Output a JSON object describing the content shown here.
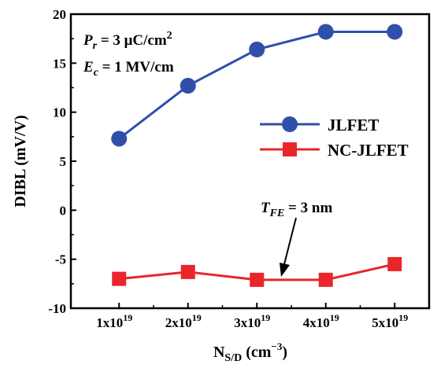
{
  "chart_data": {
    "type": "line",
    "x": [
      1,
      2,
      3,
      4,
      5
    ],
    "x_tick_labels": [
      {
        "base": "1x10",
        "exp": "19"
      },
      {
        "base": "2x10",
        "exp": "19"
      },
      {
        "base": "3x10",
        "exp": "19"
      },
      {
        "base": "4x10",
        "exp": "19"
      },
      {
        "base": "5x10",
        "exp": "19"
      }
    ],
    "xlim": [
      0.3,
      5.5
    ],
    "ylim": [
      -10,
      20
    ],
    "y_ticks": [
      -10,
      -5,
      0,
      5,
      10,
      15,
      20
    ],
    "y_tick_labels": [
      "-10",
      "-5",
      "0",
      "5",
      "10",
      "15",
      "20"
    ],
    "xlabel": {
      "main": "N",
      "sub": "S/D",
      "unit_open": " (cm",
      "unit_exp": "−3",
      "unit_close": ")"
    },
    "ylabel": "DIBL (mV/V)",
    "series": [
      {
        "name": "JLFET",
        "marker": "circle",
        "color": "#2f4faa",
        "values": [
          7.3,
          12.7,
          16.4,
          18.2,
          18.2
        ]
      },
      {
        "name": "NC-JLFET",
        "marker": "square",
        "color": "#e8262b",
        "values": [
          -7.0,
          -6.3,
          -7.1,
          -7.1,
          -5.5
        ]
      }
    ],
    "legend_position": "right",
    "annotations": {
      "pr": {
        "sym": "P",
        "sub": "r",
        "text": " = 3 μC/cm",
        "sup": "2"
      },
      "ec": {
        "sym": "E",
        "sub": "c",
        "text": " = 1 MV/cm"
      },
      "tfe": {
        "sym": "T",
        "sub": "FE",
        "text": " = 3 nm"
      }
    }
  }
}
